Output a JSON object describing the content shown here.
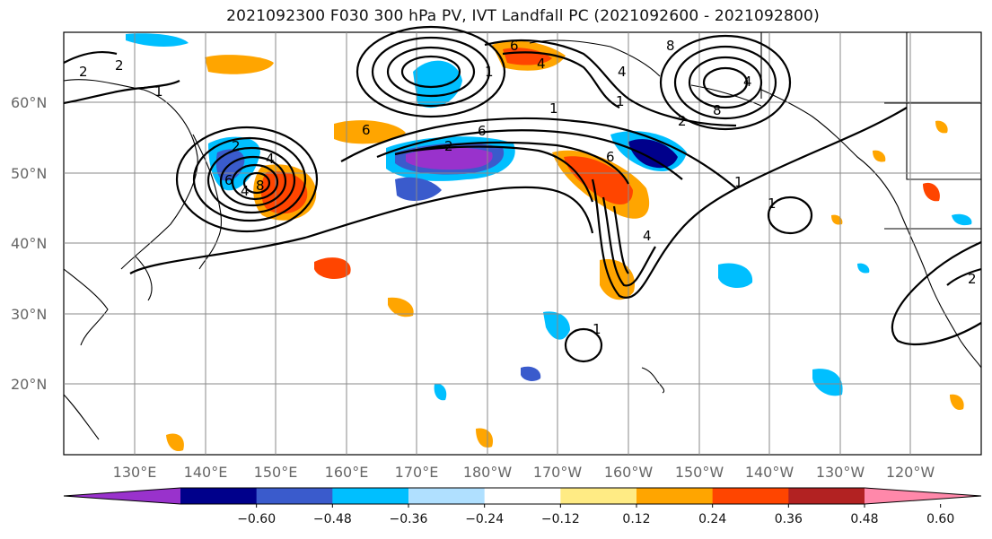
{
  "title": "2021092300 F030 300 hPa PV, IVT Landfall PC (2021092600 - 2021092800)",
  "map": {
    "lon_range": [
      120,
      250
    ],
    "lat_range": [
      10,
      70
    ],
    "gridlines": true,
    "lat_labels": [
      "20°N",
      "30°N",
      "40°N",
      "50°N",
      "60°N"
    ],
    "lon_labels": [
      "130°E",
      "140°E",
      "150°E",
      "160°E",
      "170°E",
      "180°W",
      "170°W",
      "160°W",
      "150°W",
      "140°W",
      "130°W",
      "120°W"
    ]
  },
  "colorbar": {
    "tick_labels": [
      "−0.60",
      "−0.48",
      "−0.36",
      "−0.24",
      "−0.12",
      "0.12",
      "0.24",
      "0.36",
      "0.48",
      "0.60"
    ],
    "colors": [
      "#9932cc",
      "#00008b",
      "#3a5bcc",
      "#00bfff",
      "#b0e0ff",
      "#ffffff",
      "#ffeb84",
      "#ffa500",
      "#ff4500",
      "#b22222",
      "#ff88aa"
    ]
  },
  "contour_labels": [
    "2",
    "2",
    "1",
    "2",
    "4",
    "6",
    "4",
    "8",
    "6",
    "6",
    "2",
    "1",
    "4",
    "6",
    "1",
    "1",
    "4",
    "8",
    "8",
    "4",
    "2",
    "1",
    "1",
    "1",
    "2",
    "6",
    "4"
  ]
}
